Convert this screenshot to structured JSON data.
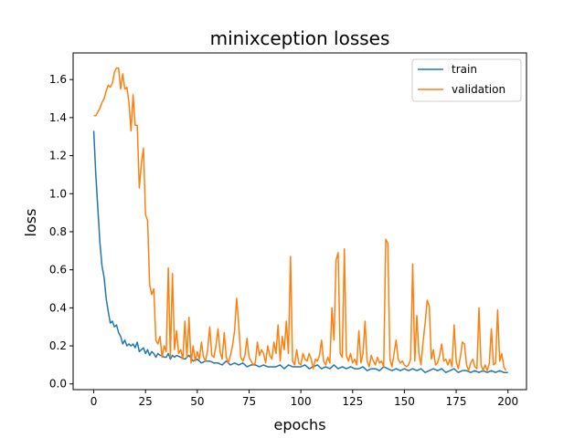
{
  "chart_data": {
    "type": "line",
    "title": "minixception losses",
    "xlabel": "epochs",
    "ylabel": "loss",
    "xlim": [
      -9.95,
      208.95
    ],
    "ylim": [
      -0.03,
      1.74
    ],
    "xticks": [
      0,
      25,
      50,
      75,
      100,
      125,
      150,
      175,
      200
    ],
    "yticks": [
      0.0,
      0.2,
      0.4,
      0.6,
      0.8,
      1.0,
      1.2,
      1.4,
      1.6
    ],
    "ytick_labels": [
      "0.0",
      "0.2",
      "0.4",
      "0.6",
      "0.8",
      "1.0",
      "1.2",
      "1.4",
      "1.6"
    ],
    "grid": false,
    "legend_position": "upper right",
    "series": [
      {
        "name": "train",
        "color": "#1f77b4",
        "points": [
          [
            0,
            1.33
          ],
          [
            1,
            1.1
          ],
          [
            2,
            0.92
          ],
          [
            3,
            0.74
          ],
          [
            4,
            0.62
          ],
          [
            5,
            0.56
          ],
          [
            6,
            0.45
          ],
          [
            7,
            0.38
          ],
          [
            8,
            0.32
          ],
          [
            9,
            0.33
          ],
          [
            10,
            0.3
          ],
          [
            11,
            0.31
          ],
          [
            12,
            0.27
          ],
          [
            13,
            0.25
          ],
          [
            14,
            0.21
          ],
          [
            15,
            0.23
          ],
          [
            16,
            0.2
          ],
          [
            17,
            0.21
          ],
          [
            18,
            0.2
          ],
          [
            19,
            0.21
          ],
          [
            20,
            0.19
          ],
          [
            21,
            0.22
          ],
          [
            22,
            0.17
          ],
          [
            23,
            0.18
          ],
          [
            24,
            0.19
          ],
          [
            25,
            0.16
          ],
          [
            26,
            0.18
          ],
          [
            27,
            0.15
          ],
          [
            28,
            0.17
          ],
          [
            29,
            0.16
          ],
          [
            30,
            0.14
          ],
          [
            31,
            0.16
          ],
          [
            32,
            0.15
          ],
          [
            33,
            0.15
          ],
          [
            34,
            0.14
          ],
          [
            35,
            0.14
          ],
          [
            36,
            0.16
          ],
          [
            37,
            0.13
          ],
          [
            38,
            0.15
          ],
          [
            39,
            0.14
          ],
          [
            40,
            0.15
          ],
          [
            42,
            0.14
          ],
          [
            44,
            0.13
          ],
          [
            46,
            0.15
          ],
          [
            48,
            0.12
          ],
          [
            50,
            0.13
          ],
          [
            52,
            0.11
          ],
          [
            54,
            0.12
          ],
          [
            56,
            0.12
          ],
          [
            58,
            0.11
          ],
          [
            60,
            0.11
          ],
          [
            62,
            0.1
          ],
          [
            64,
            0.12
          ],
          [
            66,
            0.1
          ],
          [
            68,
            0.11
          ],
          [
            70,
            0.1
          ],
          [
            72,
            0.11
          ],
          [
            74,
            0.09
          ],
          [
            76,
            0.1
          ],
          [
            78,
            0.1
          ],
          [
            80,
            0.09
          ],
          [
            82,
            0.1
          ],
          [
            84,
            0.09
          ],
          [
            86,
            0.09
          ],
          [
            88,
            0.09
          ],
          [
            90,
            0.1
          ],
          [
            92,
            0.08
          ],
          [
            94,
            0.1
          ],
          [
            96,
            0.09
          ],
          [
            98,
            0.09
          ],
          [
            100,
            0.09
          ],
          [
            102,
            0.1
          ],
          [
            104,
            0.08
          ],
          [
            106,
            0.09
          ],
          [
            108,
            0.1
          ],
          [
            110,
            0.08
          ],
          [
            112,
            0.09
          ],
          [
            114,
            0.08
          ],
          [
            116,
            0.1
          ],
          [
            118,
            0.08
          ],
          [
            120,
            0.09
          ],
          [
            122,
            0.08
          ],
          [
            124,
            0.09
          ],
          [
            126,
            0.08
          ],
          [
            128,
            0.08
          ],
          [
            130,
            0.09
          ],
          [
            132,
            0.07
          ],
          [
            134,
            0.08
          ],
          [
            136,
            0.08
          ],
          [
            138,
            0.07
          ],
          [
            140,
            0.09
          ],
          [
            142,
            0.08
          ],
          [
            144,
            0.07
          ],
          [
            146,
            0.08
          ],
          [
            148,
            0.07
          ],
          [
            150,
            0.08
          ],
          [
            152,
            0.07
          ],
          [
            154,
            0.08
          ],
          [
            156,
            0.07
          ],
          [
            158,
            0.08
          ],
          [
            160,
            0.06
          ],
          [
            162,
            0.07
          ],
          [
            164,
            0.08
          ],
          [
            166,
            0.07
          ],
          [
            168,
            0.08
          ],
          [
            170,
            0.06
          ],
          [
            172,
            0.07
          ],
          [
            174,
            0.08
          ],
          [
            176,
            0.06
          ],
          [
            178,
            0.07
          ],
          [
            180,
            0.07
          ],
          [
            182,
            0.06
          ],
          [
            184,
            0.07
          ],
          [
            186,
            0.06
          ],
          [
            188,
            0.07
          ],
          [
            190,
            0.06
          ],
          [
            192,
            0.07
          ],
          [
            194,
            0.06
          ],
          [
            196,
            0.07
          ],
          [
            198,
            0.06
          ],
          [
            200,
            0.06
          ]
        ]
      },
      {
        "name": "validation",
        "color": "#ff7f0e",
        "points": [
          [
            0,
            1.41
          ],
          [
            1,
            1.41
          ],
          [
            2,
            1.43
          ],
          [
            3,
            1.45
          ],
          [
            4,
            1.48
          ],
          [
            5,
            1.5
          ],
          [
            6,
            1.54
          ],
          [
            7,
            1.57
          ],
          [
            8,
            1.56
          ],
          [
            9,
            1.58
          ],
          [
            10,
            1.64
          ],
          [
            11,
            1.66
          ],
          [
            12,
            1.66
          ],
          [
            13,
            1.55
          ],
          [
            14,
            1.63
          ],
          [
            15,
            1.55
          ],
          [
            16,
            1.56
          ],
          [
            17,
            1.48
          ],
          [
            18,
            1.33
          ],
          [
            19,
            1.52
          ],
          [
            20,
            1.36
          ],
          [
            21,
            1.36
          ],
          [
            22,
            1.03
          ],
          [
            23,
            1.16
          ],
          [
            24,
            1.24
          ],
          [
            25,
            0.89
          ],
          [
            26,
            0.86
          ],
          [
            27,
            0.52
          ],
          [
            28,
            0.47
          ],
          [
            29,
            0.5
          ],
          [
            30,
            0.23
          ],
          [
            31,
            0.21
          ],
          [
            32,
            0.25
          ],
          [
            33,
            0.14
          ],
          [
            34,
            0.2
          ],
          [
            35,
            0.17
          ],
          [
            36,
            0.61
          ],
          [
            37,
            0.14
          ],
          [
            38,
            0.58
          ],
          [
            39,
            0.18
          ],
          [
            40,
            0.28
          ],
          [
            41,
            0.16
          ],
          [
            42,
            0.18
          ],
          [
            43,
            0.13
          ],
          [
            44,
            0.33
          ],
          [
            45,
            0.14
          ],
          [
            46,
            0.35
          ],
          [
            47,
            0.11
          ],
          [
            48,
            0.2
          ],
          [
            49,
            0.12
          ],
          [
            50,
            0.17
          ],
          [
            51,
            0.13
          ],
          [
            52,
            0.22
          ],
          [
            53,
            0.14
          ],
          [
            54,
            0.12
          ],
          [
            55,
            0.18
          ],
          [
            56,
            0.3
          ],
          [
            57,
            0.15
          ],
          [
            58,
            0.14
          ],
          [
            59,
            0.2
          ],
          [
            60,
            0.29
          ],
          [
            61,
            0.17
          ],
          [
            62,
            0.13
          ],
          [
            63,
            0.27
          ],
          [
            64,
            0.14
          ],
          [
            65,
            0.11
          ],
          [
            66,
            0.15
          ],
          [
            67,
            0.2
          ],
          [
            68,
            0.28
          ],
          [
            69,
            0.45
          ],
          [
            70,
            0.31
          ],
          [
            71,
            0.14
          ],
          [
            72,
            0.12
          ],
          [
            73,
            0.15
          ],
          [
            74,
            0.24
          ],
          [
            75,
            0.14
          ],
          [
            76,
            0.12
          ],
          [
            77,
            0.1
          ],
          [
            78,
            0.11
          ],
          [
            79,
            0.22
          ],
          [
            80,
            0.15
          ],
          [
            81,
            0.18
          ],
          [
            82,
            0.16
          ],
          [
            83,
            0.11
          ],
          [
            84,
            0.2
          ],
          [
            85,
            0.15
          ],
          [
            86,
            0.13
          ],
          [
            87,
            0.22
          ],
          [
            88,
            0.16
          ],
          [
            89,
            0.31
          ],
          [
            90,
            0.12
          ],
          [
            91,
            0.25
          ],
          [
            92,
            0.18
          ],
          [
            93,
            0.33
          ],
          [
            94,
            0.16
          ],
          [
            95,
            0.67
          ],
          [
            96,
            0.12
          ],
          [
            97,
            0.1
          ],
          [
            98,
            0.18
          ],
          [
            99,
            0.11
          ],
          [
            100,
            0.1
          ],
          [
            101,
            0.16
          ],
          [
            102,
            0.13
          ],
          [
            103,
            0.12
          ],
          [
            104,
            0.16
          ],
          [
            105,
            0.13
          ],
          [
            106,
            0.08
          ],
          [
            107,
            0.13
          ],
          [
            108,
            0.12
          ],
          [
            109,
            0.15
          ],
          [
            110,
            0.23
          ],
          [
            111,
            0.12
          ],
          [
            112,
            0.1
          ],
          [
            113,
            0.14
          ],
          [
            114,
            0.11
          ],
          [
            115,
            0.4
          ],
          [
            116,
            0.23
          ],
          [
            117,
            0.65
          ],
          [
            118,
            0.69
          ],
          [
            119,
            0.16
          ],
          [
            120,
            0.14
          ],
          [
            121,
            0.71
          ],
          [
            122,
            0.15
          ],
          [
            123,
            0.12
          ],
          [
            124,
            0.16
          ],
          [
            125,
            0.11
          ],
          [
            126,
            0.13
          ],
          [
            127,
            0.1
          ],
          [
            128,
            0.28
          ],
          [
            129,
            0.11
          ],
          [
            130,
            0.16
          ],
          [
            131,
            0.33
          ],
          [
            132,
            0.12
          ],
          [
            133,
            0.09
          ],
          [
            134,
            0.15
          ],
          [
            135,
            0.12
          ],
          [
            136,
            0.1
          ],
          [
            137,
            0.14
          ],
          [
            138,
            0.11
          ],
          [
            139,
            0.12
          ],
          [
            140,
            0.09
          ],
          [
            141,
            0.76
          ],
          [
            142,
            0.74
          ],
          [
            143,
            0.13
          ],
          [
            144,
            0.09
          ],
          [
            145,
            0.16
          ],
          [
            146,
            0.23
          ],
          [
            147,
            0.13
          ],
          [
            148,
            0.11
          ],
          [
            149,
            0.12
          ],
          [
            150,
            0.1
          ],
          [
            151,
            0.09
          ],
          [
            152,
            0.1
          ],
          [
            153,
            0.13
          ],
          [
            154,
            0.63
          ],
          [
            155,
            0.12
          ],
          [
            156,
            0.36
          ],
          [
            157,
            0.16
          ],
          [
            158,
            0.1
          ],
          [
            159,
            0.22
          ],
          [
            160,
            0.32
          ],
          [
            161,
            0.44
          ],
          [
            162,
            0.41
          ],
          [
            163,
            0.13
          ],
          [
            164,
            0.18
          ],
          [
            165,
            0.1
          ],
          [
            166,
            0.11
          ],
          [
            167,
            0.15
          ],
          [
            168,
            0.21
          ],
          [
            169,
            0.12
          ],
          [
            170,
            0.13
          ],
          [
            171,
            0.1
          ],
          [
            172,
            0.13
          ],
          [
            173,
            0.09
          ],
          [
            174,
            0.31
          ],
          [
            175,
            0.12
          ],
          [
            176,
            0.08
          ],
          [
            177,
            0.14
          ],
          [
            178,
            0.22
          ],
          [
            179,
            0.21
          ],
          [
            180,
            0.1
          ],
          [
            181,
            0.07
          ],
          [
            182,
            0.11
          ],
          [
            183,
            0.13
          ],
          [
            184,
            0.09
          ],
          [
            185,
            0.08
          ],
          [
            186,
            0.4
          ],
          [
            187,
            0.1
          ],
          [
            188,
            0.07
          ],
          [
            189,
            0.1
          ],
          [
            190,
            0.07
          ],
          [
            191,
            0.11
          ],
          [
            192,
            0.29
          ],
          [
            193,
            0.1
          ],
          [
            194,
            0.11
          ],
          [
            195,
            0.39
          ],
          [
            196,
            0.12
          ],
          [
            197,
            0.16
          ],
          [
            198,
            0.09
          ],
          [
            199,
            0.07
          ]
        ]
      }
    ]
  }
}
